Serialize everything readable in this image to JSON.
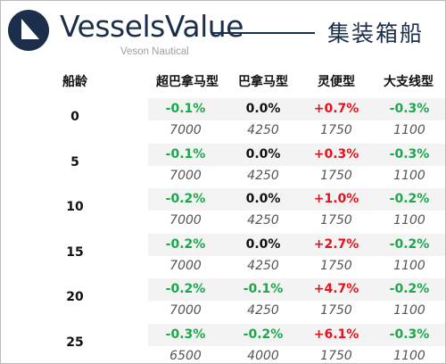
{
  "header": {
    "brand": "VesselsValue",
    "sub_brand": "Veson Nautical",
    "title": "集装箱船"
  },
  "table": {
    "age_label": "船龄",
    "columns": [
      "超巴拿马型",
      "巴拿马型",
      "灵便型",
      "大支线型"
    ],
    "rows": [
      {
        "age": "0",
        "changes": [
          "-0.1%",
          "0.0%",
          "+0.7%",
          "-0.3%"
        ],
        "values": [
          "7000",
          "4250",
          "1750",
          "1100"
        ]
      },
      {
        "age": "5",
        "changes": [
          "-0.1%",
          "0.0%",
          "+0.3%",
          "-0.3%"
        ],
        "values": [
          "7000",
          "4250",
          "1750",
          "1100"
        ]
      },
      {
        "age": "10",
        "changes": [
          "-0.2%",
          "0.0%",
          "+1.0%",
          "-0.2%"
        ],
        "values": [
          "7000",
          "4250",
          "1750",
          "1100"
        ]
      },
      {
        "age": "15",
        "changes": [
          "-0.2%",
          "0.0%",
          "+2.7%",
          "-0.2%"
        ],
        "values": [
          "7000",
          "4250",
          "1750",
          "1100"
        ]
      },
      {
        "age": "20",
        "changes": [
          "-0.2%",
          "-0.1%",
          "+4.7%",
          "-0.2%"
        ],
        "values": [
          "7000",
          "4250",
          "1750",
          "1100"
        ]
      },
      {
        "age": "25",
        "changes": [
          "-0.3%",
          "-0.2%",
          "+6.1%",
          "-0.3%"
        ],
        "values": [
          "6500",
          "4000",
          "1750",
          "1100"
        ]
      }
    ]
  },
  "colors": {
    "negative": "#1aa84a",
    "positive": "#e8101a",
    "neutral": "#111111",
    "brand": "#1b2e4b"
  },
  "icons": {
    "logo": "vesselsvalue-logo-icon"
  }
}
